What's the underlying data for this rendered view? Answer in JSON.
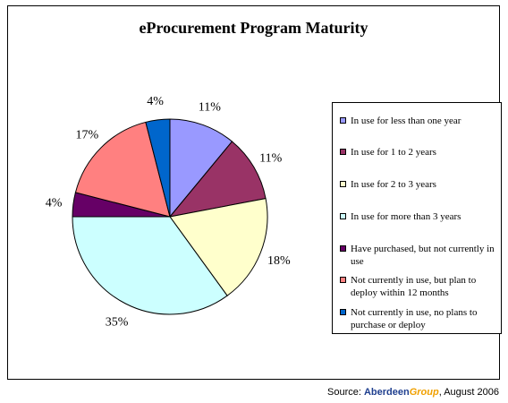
{
  "chart_data": {
    "type": "pie",
    "title": "eProcurement Program Maturity",
    "slices": [
      {
        "label": "In use for less than one year",
        "value": 11,
        "value_label": "11%",
        "color": "#9999ff"
      },
      {
        "label": "In use for 1 to 2 years",
        "value": 11,
        "value_label": "11%",
        "color": "#993366"
      },
      {
        "label": "In use for 2 to 3 years",
        "value": 18,
        "value_label": "18%",
        "color": "#ffffcc"
      },
      {
        "label": "In use for more than 3 years",
        "value": 35,
        "value_label": "35%",
        "color": "#ccffff"
      },
      {
        "label": "Have purchased, but not currently in use",
        "value": 4,
        "value_label": "4%",
        "color": "#660066"
      },
      {
        "label": "Not currently in use, but plan to deploy within 12 months",
        "value": 17,
        "value_label": "17%",
        "color": "#ff8080"
      },
      {
        "label": "Not currently in use, no plans to purchase or deploy",
        "value": 4,
        "value_label": "4%",
        "color": "#0066cc"
      }
    ],
    "legend_position": "right"
  },
  "source": {
    "prefix": "Source: ",
    "brand_main": "Aberdeen",
    "brand_accent": "Group",
    "date": ", August 2006"
  }
}
